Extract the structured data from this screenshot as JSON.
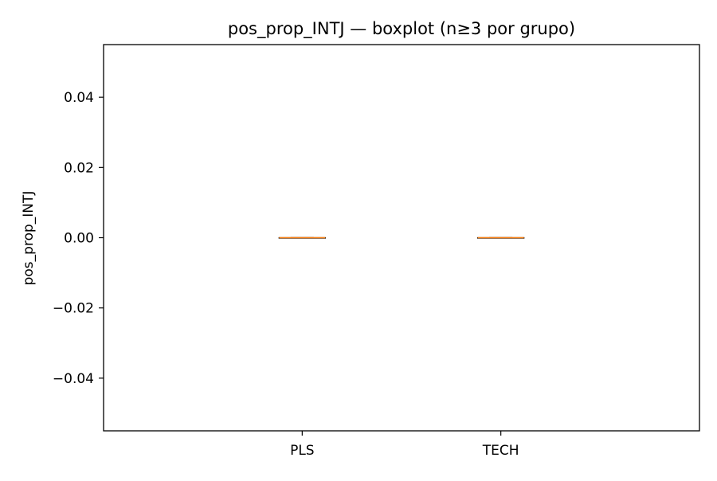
{
  "chart_data": {
    "type": "boxplot",
    "title": "pos_prop_INTJ — boxplot (n≥3 por grupo)",
    "xlabel": "",
    "ylabel": "pos_prop_INTJ",
    "categories": [
      "PLS",
      "TECH"
    ],
    "boxes": [
      {
        "category": "PLS",
        "min": 0.0,
        "q1": 0.0,
        "median": 0.0,
        "q3": 0.0,
        "max": 0.0
      },
      {
        "category": "TECH",
        "min": 0.0,
        "q1": 0.0,
        "median": 0.0,
        "q3": 0.0,
        "max": 0.0
      }
    ],
    "ylim": [
      -0.055,
      0.055
    ],
    "yticks": [
      -0.04,
      -0.02,
      0.0,
      0.02,
      0.04
    ],
    "ytick_labels": [
      "−0.04",
      "−0.02",
      "0.00",
      "0.02",
      "0.04"
    ],
    "grid": false,
    "legend": "none",
    "colors": {
      "median": "#ff7f0e",
      "box": "#000000",
      "axes": "#000000",
      "background": "#ffffff"
    }
  }
}
